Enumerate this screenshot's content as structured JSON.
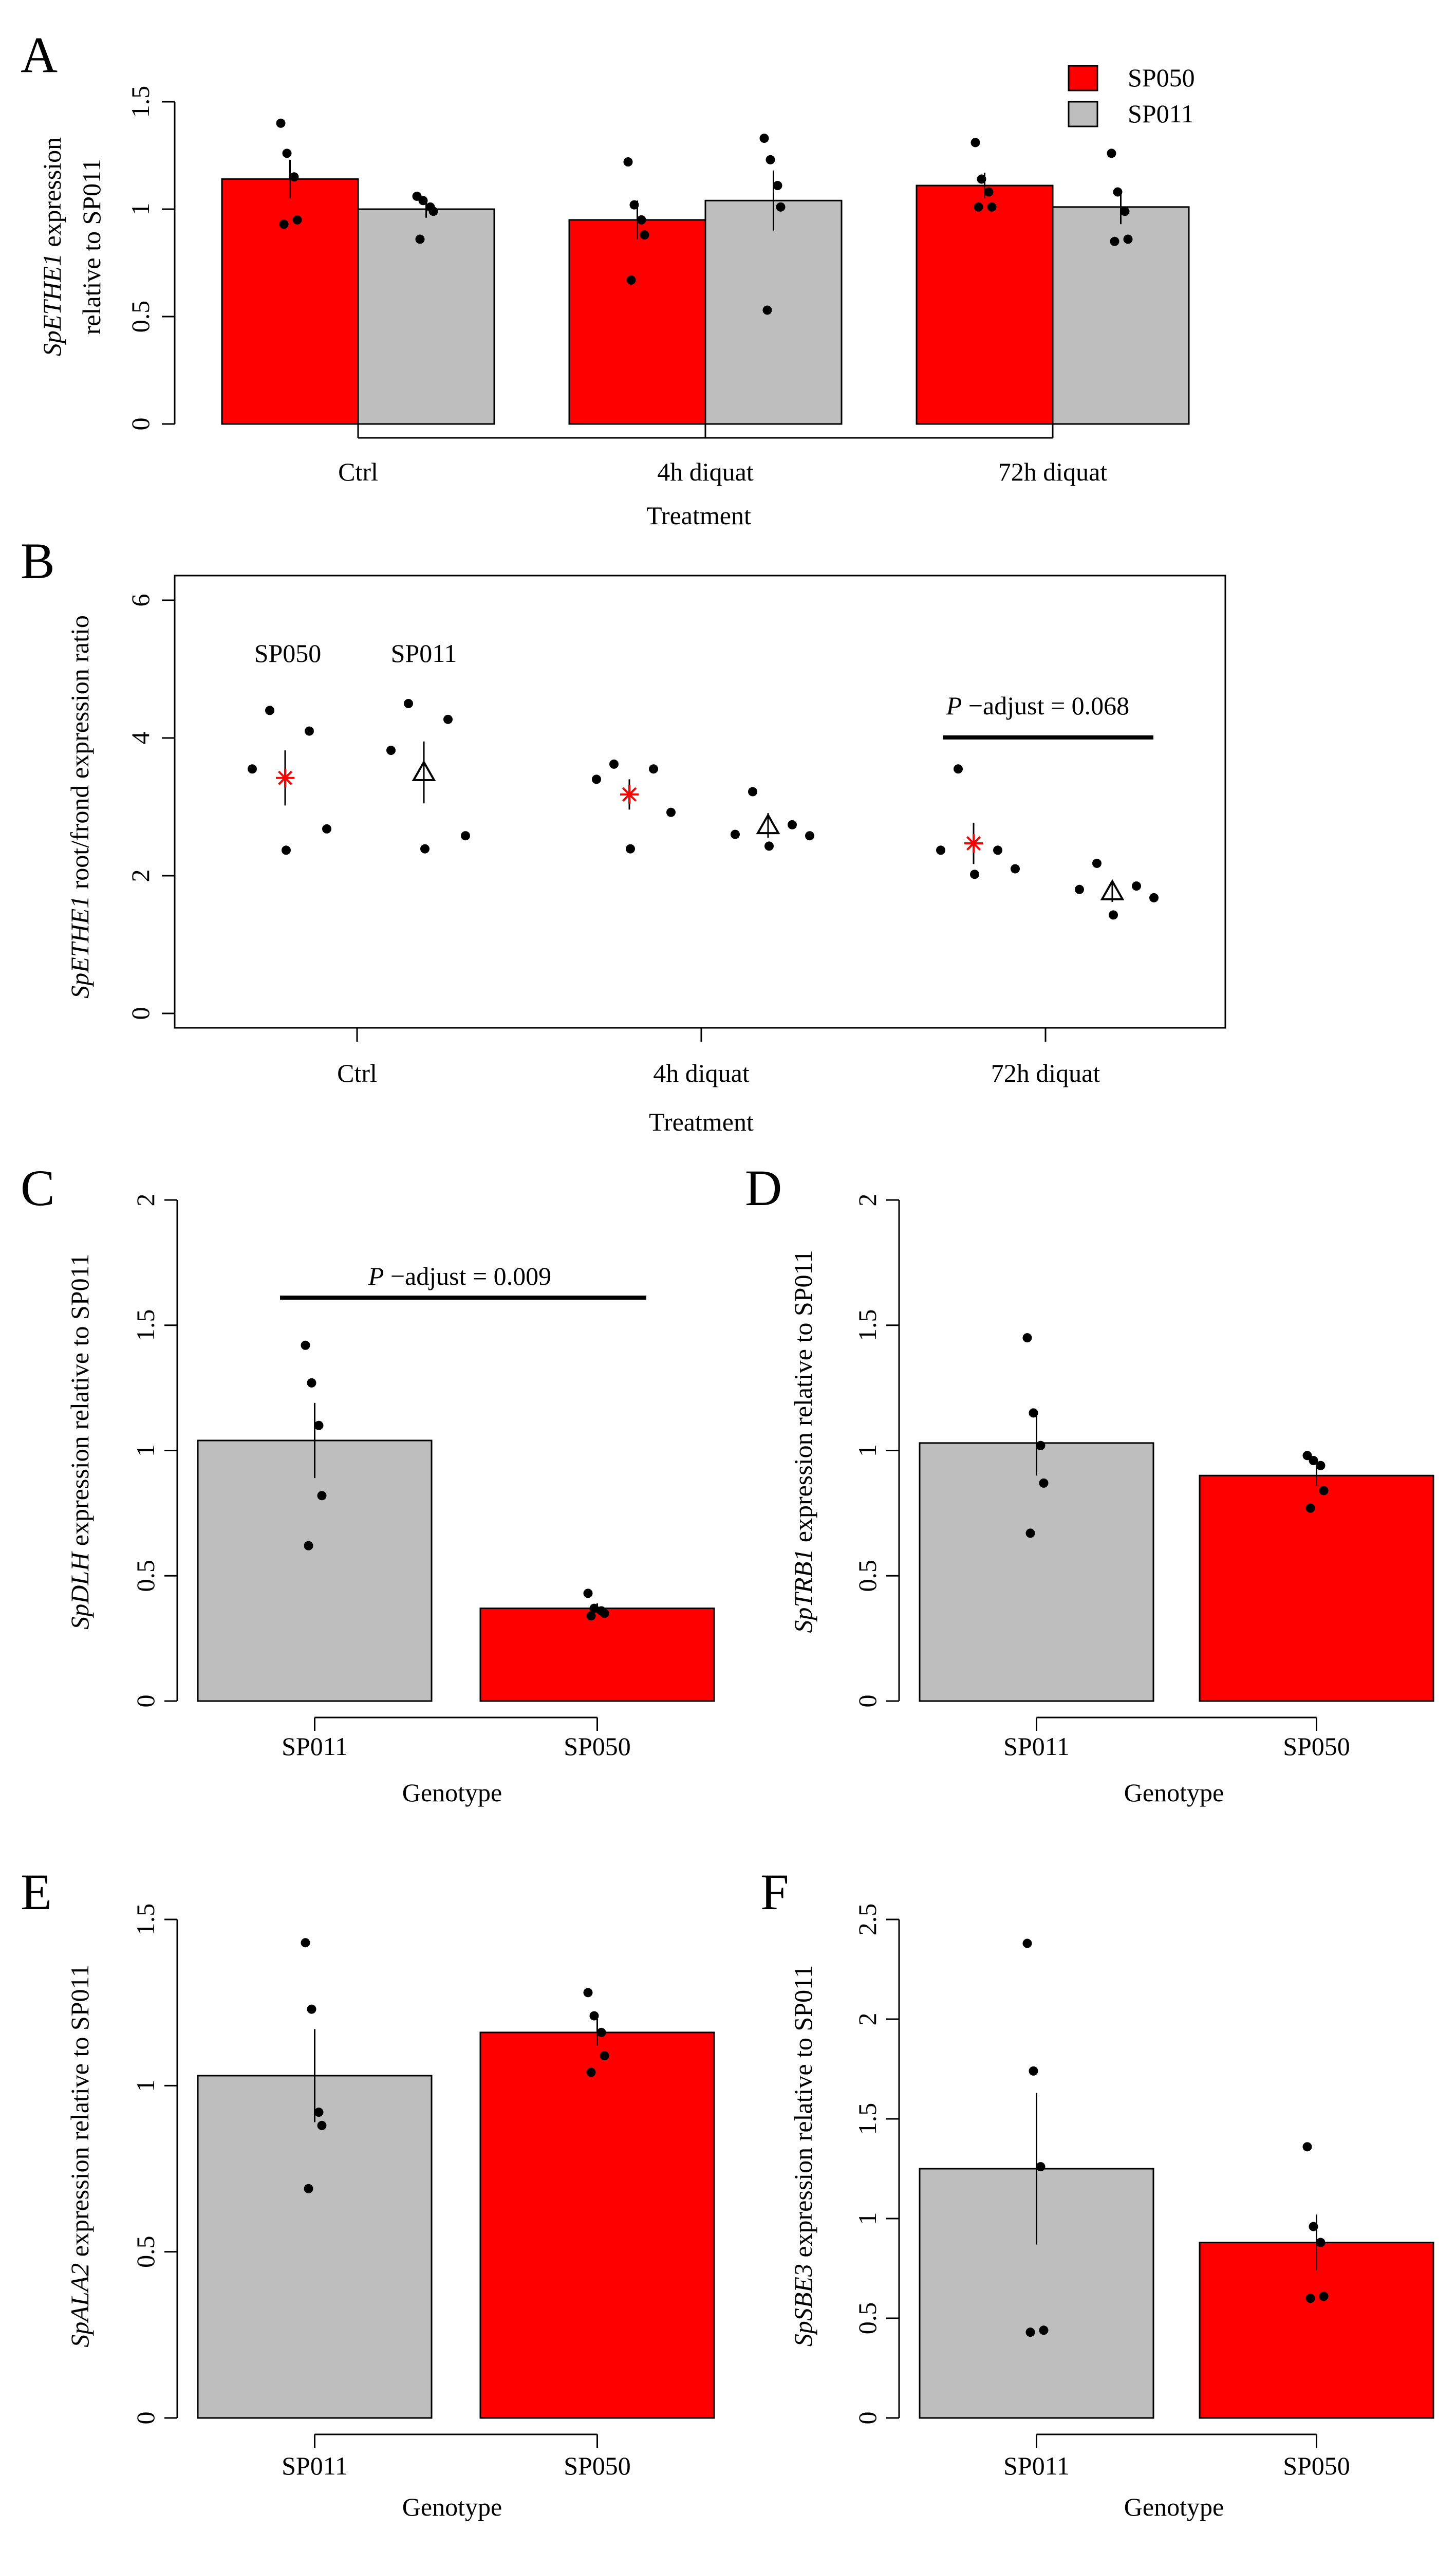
{
  "colors": {
    "red": "#ff0000",
    "gray": "#bebebe",
    "black": "#000000"
  },
  "chart_data": [
    {
      "panel": "A",
      "type": "bar",
      "ylabel_italic": "SpETHE1",
      "ylabel_rest": " expression",
      "ylabel_line2": "relative to SP011",
      "xlabel": "Treatment",
      "ylim": [
        0,
        1.5
      ],
      "yticks": [
        "0",
        "0.5",
        "1",
        "1.5"
      ],
      "categories": [
        "Ctrl",
        "4h diquat",
        "72h diquat"
      ],
      "legend": [
        {
          "name": "SP050",
          "color": "#ff0000"
        },
        {
          "name": "SP011",
          "color": "#bebebe"
        }
      ],
      "series": [
        {
          "name": "SP050",
          "color": "#ff0000",
          "values": [
            1.14,
            0.95,
            1.11
          ],
          "se": [
            0.09,
            0.09,
            0.06
          ],
          "points": [
            [
              1.4,
              1.26,
              1.15,
              0.95,
              0.93
            ],
            [
              1.22,
              1.02,
              0.95,
              0.88,
              0.67
            ],
            [
              1.31,
              1.14,
              1.08,
              1.01,
              1.01
            ]
          ]
        },
        {
          "name": "SP011",
          "color": "#bebebe",
          "values": [
            1.0,
            1.04,
            1.01
          ],
          "se": [
            0.04,
            0.14,
            0.08
          ],
          "points": [
            [
              1.06,
              1.04,
              1.01,
              0.99,
              0.86
            ],
            [
              1.33,
              1.23,
              1.11,
              1.01,
              0.53
            ],
            [
              1.26,
              1.08,
              0.99,
              0.86,
              0.85
            ]
          ]
        }
      ]
    },
    {
      "panel": "B",
      "type": "scatter",
      "ylabel_italic": "SpETHE1",
      "ylabel_rest": " root/frond expression ratio",
      "xlabel": "Treatment",
      "ylim": [
        0,
        6
      ],
      "yticks": [
        "0",
        "2",
        "4",
        "6"
      ],
      "categories": [
        "Ctrl",
        "4h diquat",
        "72h diquat"
      ],
      "group_labels": [
        {
          "name": "SP050",
          "color": "#ff0000"
        },
        {
          "name": "SP011",
          "color": "#000000"
        }
      ],
      "series": [
        {
          "name": "SP050",
          "marker": "asterisk",
          "color": "#ff0000",
          "means": [
            3.42,
            3.18,
            2.47
          ],
          "se": [
            0.4,
            0.22,
            0.3
          ],
          "points": [
            [
              4.4,
              4.1,
              3.55,
              2.68,
              2.37
            ],
            [
              3.62,
              3.55,
              3.4,
              2.92,
              2.39
            ],
            [
              3.55,
              2.37,
              2.37,
              2.1,
              2.02
            ]
          ]
        },
        {
          "name": "SP011",
          "marker": "triangle",
          "color": "#000000",
          "means": [
            3.5,
            2.73,
            1.77
          ],
          "se": [
            0.45,
            0.18,
            0.15
          ],
          "points": [
            [
              4.5,
              4.27,
              3.82,
              2.58,
              2.39
            ],
            [
              3.22,
              2.74,
              2.6,
              2.58,
              2.43
            ],
            [
              2.18,
              1.85,
              1.8,
              1.68,
              1.43
            ]
          ]
        }
      ],
      "annotation": {
        "italic": "P",
        "rest": " −adjust = 0.068",
        "between": "72h diquat"
      }
    },
    {
      "panel": "C",
      "type": "bar",
      "ylabel_italic": "SpDLH",
      "ylabel_rest": " expression relative to SP011",
      "xlabel": "Genotype",
      "ylim": [
        0,
        2
      ],
      "yticks": [
        "0",
        "0.5",
        "1",
        "1.5",
        "2"
      ],
      "categories": [
        "SP011",
        "SP050"
      ],
      "bar_colors": [
        "#bebebe",
        "#ff0000"
      ],
      "values": [
        1.04,
        0.37
      ],
      "se": [
        0.15,
        0.02
      ],
      "points": [
        [
          1.42,
          1.27,
          1.1,
          0.82,
          0.62
        ],
        [
          0.43,
          0.37,
          0.36,
          0.35,
          0.34
        ]
      ],
      "annotation": {
        "italic": "P",
        "rest": " −adjust = 0.009"
      }
    },
    {
      "panel": "D",
      "type": "bar",
      "ylabel_italic": "SpTRB1",
      "ylabel_rest": " expression relative to SP011",
      "xlabel": "Genotype",
      "ylim": [
        0,
        2
      ],
      "yticks": [
        "0",
        "0.5",
        "1",
        "1.5",
        "2"
      ],
      "categories": [
        "SP011",
        "SP050"
      ],
      "bar_colors": [
        "#bebebe",
        "#ff0000"
      ],
      "values": [
        1.03,
        0.9
      ],
      "se": [
        0.13,
        0.04
      ],
      "points": [
        [
          1.45,
          1.15,
          1.02,
          0.87,
          0.67
        ],
        [
          0.98,
          0.96,
          0.94,
          0.84,
          0.77
        ]
      ]
    },
    {
      "panel": "E",
      "type": "bar",
      "ylabel_italic": "SpALA2",
      "ylabel_rest": " expression relative to SP011",
      "xlabel": "Genotype",
      "ylim": [
        0,
        1.5
      ],
      "yticks": [
        "0",
        "0.5",
        "1",
        "1.5"
      ],
      "categories": [
        "SP011",
        "SP050"
      ],
      "bar_colors": [
        "#bebebe",
        "#ff0000"
      ],
      "values": [
        1.03,
        1.16
      ],
      "se": [
        0.14,
        0.04
      ],
      "points": [
        [
          1.43,
          1.23,
          0.92,
          0.88,
          0.69
        ],
        [
          1.28,
          1.21,
          1.16,
          1.09,
          1.04
        ]
      ]
    },
    {
      "panel": "F",
      "type": "bar",
      "ylabel_italic": "SpSBE3",
      "ylabel_rest": " expression relative to SP011",
      "xlabel": "Genotype",
      "ylim": [
        0,
        2.5
      ],
      "yticks": [
        "0",
        "0.5",
        "1",
        "1.5",
        "2",
        "2.5"
      ],
      "categories": [
        "SP011",
        "SP050"
      ],
      "bar_colors": [
        "#bebebe",
        "#ff0000"
      ],
      "values": [
        1.25,
        0.88
      ],
      "se": [
        0.38,
        0.14
      ],
      "points": [
        [
          2.38,
          1.74,
          1.26,
          0.44,
          0.43
        ],
        [
          1.36,
          0.96,
          0.88,
          0.61,
          0.6
        ]
      ]
    }
  ]
}
